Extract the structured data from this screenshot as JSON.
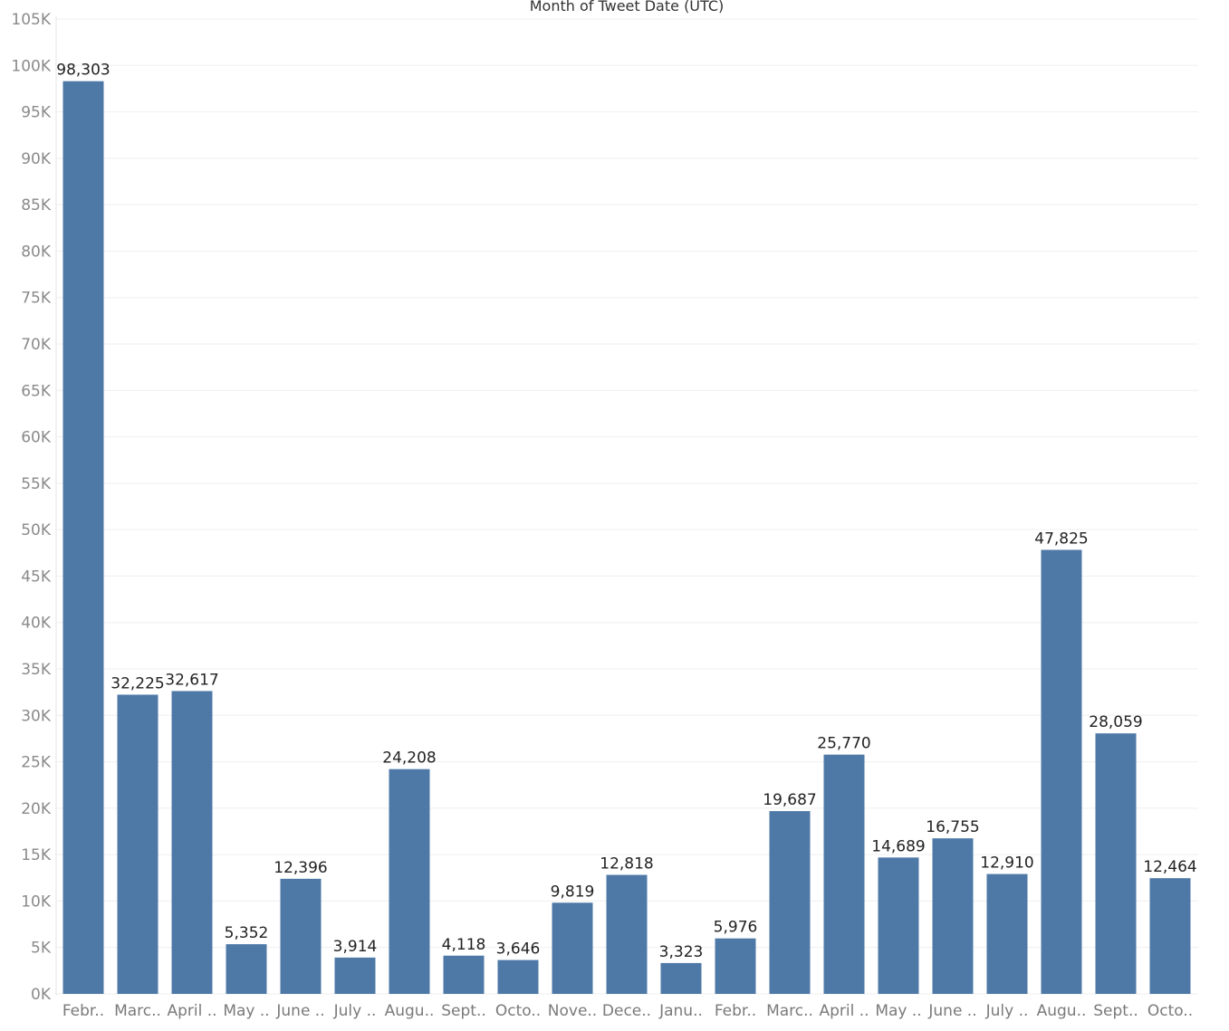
{
  "chart_data": {
    "type": "bar",
    "title": "Month of Tweet Date (UTC)",
    "xlabel": "",
    "ylabel": "",
    "ylim": [
      0,
      105000
    ],
    "y_ticks": [
      "0K",
      "5K",
      "10K",
      "15K",
      "20K",
      "25K",
      "30K",
      "35K",
      "40K",
      "45K",
      "50K",
      "55K",
      "60K",
      "65K",
      "70K",
      "75K",
      "80K",
      "85K",
      "90K",
      "95K",
      "100K",
      "105K"
    ],
    "y_tick_values": [
      0,
      5000,
      10000,
      15000,
      20000,
      25000,
      30000,
      35000,
      40000,
      45000,
      50000,
      55000,
      60000,
      65000,
      70000,
      75000,
      80000,
      85000,
      90000,
      95000,
      100000,
      105000
    ],
    "grid": true,
    "bar_color": "#4e79a7",
    "categories": [
      "Febr..",
      "Marc..",
      "April ..",
      "May ..",
      "June ..",
      "July ..",
      "Augu..",
      "Sept..",
      "Octo..",
      "Nove..",
      "Dece..",
      "Janu..",
      "Febr..",
      "Marc..",
      "April ..",
      "May ..",
      "June ..",
      "July ..",
      "Augu..",
      "Sept..",
      "Octo.."
    ],
    "values": [
      98303,
      32225,
      32617,
      5352,
      12396,
      3914,
      24208,
      4118,
      3646,
      9819,
      12818,
      3323,
      5976,
      19687,
      25770,
      14689,
      16755,
      12910,
      47825,
      28059,
      12464
    ],
    "value_labels": [
      "98,303",
      "32,225",
      "32,617",
      "5,352",
      "12,396",
      "3,914",
      "24,208",
      "4,118",
      "3,646",
      "9,819",
      "12,818",
      "3,323",
      "5,976",
      "19,687",
      "25,770",
      "14,689",
      "16,755",
      "12,910",
      "47,825",
      "28,059",
      "12,464"
    ]
  }
}
